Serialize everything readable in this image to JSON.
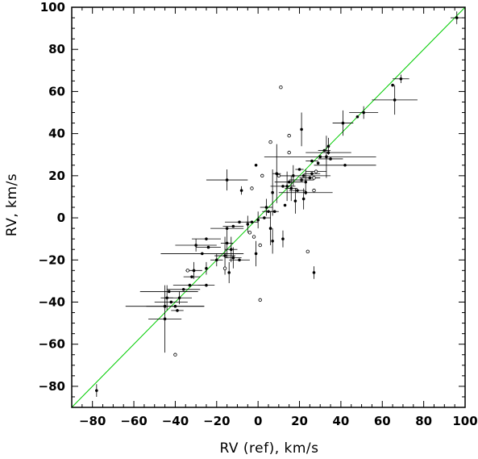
{
  "chart_data": {
    "type": "scatter",
    "title": "",
    "xlabel": "RV  (ref), km/s",
    "ylabel": "RV,  km/s",
    "xlim": [
      -90,
      100
    ],
    "ylim": [
      -90,
      100
    ],
    "x_ticks": [
      -80,
      -60,
      -40,
      -20,
      0,
      20,
      40,
      60,
      80,
      100
    ],
    "y_ticks": [
      -80,
      -60,
      -40,
      -20,
      0,
      20,
      40,
      60,
      80,
      100
    ],
    "x_tick_labels": [
      "−80",
      "−60",
      "−40",
      "−20",
      "0",
      "20",
      "40",
      "60",
      "80",
      "100"
    ],
    "y_tick_labels": [
      "−80",
      "−60",
      "−40",
      "−20",
      "0",
      "20",
      "40",
      "60",
      "80",
      "100"
    ],
    "grid": false,
    "reference_line": {
      "name": "",
      "slope": 1,
      "intercept": 0,
      "color": "#00cc00"
    },
    "series": [
      {
        "name": "",
        "marker": "filled",
        "color": "#000000",
        "points": [
          {
            "x": 96,
            "y": 95,
            "xerr": 3,
            "yerr": 3
          },
          {
            "x": 69,
            "y": 66,
            "xerr": 4,
            "yerr": 2
          },
          {
            "x": 65,
            "y": 63,
            "xerr": 0,
            "yerr": 0
          },
          {
            "x": 66,
            "y": 56,
            "xerr": 11,
            "yerr": 7
          },
          {
            "x": 51,
            "y": 50,
            "xerr": 7,
            "yerr": 3
          },
          {
            "x": 48,
            "y": 48,
            "xerr": 0,
            "yerr": 0
          },
          {
            "x": 41,
            "y": 45,
            "xerr": 5,
            "yerr": 6
          },
          {
            "x": 21,
            "y": 42,
            "xerr": 0,
            "yerr": 8
          },
          {
            "x": 34,
            "y": 34,
            "xerr": 0,
            "yerr": 4
          },
          {
            "x": 32,
            "y": 32,
            "xerr": 3,
            "yerr": 0
          },
          {
            "x": 30,
            "y": 29,
            "xerr": 27,
            "yerr": 0
          },
          {
            "x": 26,
            "y": 27,
            "xerr": 3,
            "yerr": 0
          },
          {
            "x": 34,
            "y": 31,
            "xerr": 11,
            "yerr": 0
          },
          {
            "x": 20,
            "y": 23,
            "xerr": 2,
            "yerr": 0
          },
          {
            "x": 17,
            "y": 20,
            "xerr": 7,
            "yerr": 5
          },
          {
            "x": 22,
            "y": 20,
            "xerr": 13,
            "yerr": 0
          },
          {
            "x": 33,
            "y": 29,
            "xerr": 0,
            "yerr": 10
          },
          {
            "x": 35,
            "y": 28,
            "xerr": 6,
            "yerr": 0
          },
          {
            "x": 25,
            "y": 19,
            "xerr": 5,
            "yerr": 0
          },
          {
            "x": 21,
            "y": 18,
            "xerr": 6,
            "yerr": 0
          },
          {
            "x": 15,
            "y": 17,
            "xerr": 7,
            "yerr": 0
          },
          {
            "x": 12,
            "y": 15,
            "xerr": 6,
            "yerr": 0
          },
          {
            "x": 16,
            "y": 14,
            "xerr": 3,
            "yerr": 6
          },
          {
            "x": 14,
            "y": 15,
            "xerr": 0,
            "yerr": 7
          },
          {
            "x": 19,
            "y": 13,
            "xerr": 4,
            "yerr": 0
          },
          {
            "x": 23,
            "y": 12,
            "xerr": 13,
            "yerr": 0
          },
          {
            "x": 28,
            "y": 22,
            "xerr": 5,
            "yerr": 0
          },
          {
            "x": 23,
            "y": 17,
            "xerr": 0,
            "yerr": 6
          },
          {
            "x": 42,
            "y": 25,
            "xerr": 15,
            "yerr": 0
          },
          {
            "x": 22,
            "y": 9,
            "xerr": 0,
            "yerr": 5
          },
          {
            "x": 18,
            "y": 8,
            "xerr": 0,
            "yerr": 6
          },
          {
            "x": 9,
            "y": 21,
            "xerr": 2,
            "yerr": 14
          },
          {
            "x": 7,
            "y": 12,
            "xerr": 0,
            "yerr": 11
          },
          {
            "x": -15,
            "y": 18,
            "xerr": 10,
            "yerr": 5
          },
          {
            "x": -8,
            "y": 13,
            "xerr": 0,
            "yerr": 2
          },
          {
            "x": -1,
            "y": 25,
            "xerr": 0,
            "yerr": 0
          },
          {
            "x": 4,
            "y": 5,
            "xerr": 3,
            "yerr": 4
          },
          {
            "x": 5,
            "y": 3,
            "xerr": 3,
            "yerr": 0
          },
          {
            "x": 8,
            "y": 3,
            "xerr": 2,
            "yerr": 0
          },
          {
            "x": 3,
            "y": 0,
            "xerr": 3,
            "yerr": 0
          },
          {
            "x": 0,
            "y": -1,
            "xerr": 0,
            "yerr": 4
          },
          {
            "x": -3,
            "y": -2,
            "xerr": 3,
            "yerr": 0
          },
          {
            "x": -5,
            "y": -3,
            "xerr": 0,
            "yerr": 4
          },
          {
            "x": -9,
            "y": -2,
            "xerr": 7,
            "yerr": 0
          },
          {
            "x": -12,
            "y": -4,
            "xerr": 5,
            "yerr": 0
          },
          {
            "x": -15,
            "y": -5,
            "xerr": 8,
            "yerr": 0
          },
          {
            "x": 6,
            "y": -5,
            "xerr": 0,
            "yerr": 8
          },
          {
            "x": 12,
            "y": -10,
            "xerr": 0,
            "yerr": 4
          },
          {
            "x": 7,
            "y": -11,
            "xerr": 0,
            "yerr": 6
          },
          {
            "x": -1,
            "y": -17,
            "xerr": 0,
            "yerr": 6
          },
          {
            "x": -25,
            "y": -10,
            "xerr": 7,
            "yerr": 0
          },
          {
            "x": -30,
            "y": -13,
            "xerr": 10,
            "yerr": 3
          },
          {
            "x": -24,
            "y": -14,
            "xerr": 6,
            "yerr": 0
          },
          {
            "x": -27,
            "y": -17,
            "xerr": 20,
            "yerr": 0
          },
          {
            "x": -15,
            "y": -12,
            "xerr": 3,
            "yerr": 7
          },
          {
            "x": -13,
            "y": -15,
            "xerr": 3,
            "yerr": 6
          },
          {
            "x": -16,
            "y": -18,
            "xerr": 5,
            "yerr": 9
          },
          {
            "x": -12,
            "y": -19,
            "xerr": 4,
            "yerr": 5
          },
          {
            "x": -9,
            "y": -20,
            "xerr": 5,
            "yerr": 0
          },
          {
            "x": -14,
            "y": -26,
            "xerr": 0,
            "yerr": 5
          },
          {
            "x": -20,
            "y": -20,
            "xerr": 3,
            "yerr": 3
          },
          {
            "x": -25,
            "y": -24,
            "xerr": 0,
            "yerr": 3
          },
          {
            "x": -31,
            "y": -25,
            "xerr": 4,
            "yerr": 4
          },
          {
            "x": -32,
            "y": -28,
            "xerr": 4,
            "yerr": 0
          },
          {
            "x": -25,
            "y": -32,
            "xerr": 4,
            "yerr": 0
          },
          {
            "x": -33,
            "y": -32,
            "xerr": 8,
            "yerr": 0
          },
          {
            "x": -36,
            "y": -34,
            "xerr": 8,
            "yerr": 0
          },
          {
            "x": -43,
            "y": -35,
            "xerr": 14,
            "yerr": 0
          },
          {
            "x": -38,
            "y": -38,
            "xerr": 6,
            "yerr": 3
          },
          {
            "x": -44,
            "y": -38,
            "xerr": 3,
            "yerr": 6
          },
          {
            "x": -42,
            "y": -40,
            "xerr": 8,
            "yerr": 0
          },
          {
            "x": -40,
            "y": -42,
            "xerr": 14,
            "yerr": 0
          },
          {
            "x": -45,
            "y": -42,
            "xerr": 19,
            "yerr": 0
          },
          {
            "x": -39,
            "y": -44,
            "xerr": 3,
            "yerr": 0
          },
          {
            "x": -45,
            "y": -48,
            "xerr": 8,
            "yerr": 16
          },
          {
            "x": -78,
            "y": -82,
            "xerr": 0,
            "yerr": 3
          },
          {
            "x": 13,
            "y": 6,
            "xerr": 0,
            "yerr": 0
          },
          {
            "x": 26,
            "y": 21,
            "xerr": 4,
            "yerr": 0
          },
          {
            "x": 29,
            "y": 26,
            "xerr": 0,
            "yerr": 0
          },
          {
            "x": 27,
            "y": -26,
            "xerr": 0,
            "yerr": 3
          }
        ]
      },
      {
        "name": "",
        "marker": "open",
        "color": "#000000",
        "points": [
          {
            "x": 11,
            "y": 62
          },
          {
            "x": 6,
            "y": 36
          },
          {
            "x": 15,
            "y": 39
          },
          {
            "x": 2,
            "y": 20
          },
          {
            "x": 15,
            "y": 31
          },
          {
            "x": 27,
            "y": 19
          },
          {
            "x": 28,
            "y": 22
          },
          {
            "x": -3,
            "y": 14
          },
          {
            "x": -4,
            "y": -7
          },
          {
            "x": 1,
            "y": -13
          },
          {
            "x": 24,
            "y": -16
          },
          {
            "x": -2,
            "y": -9
          },
          {
            "x": -34,
            "y": -25
          },
          {
            "x": -16,
            "y": -24
          },
          {
            "x": 1,
            "y": -39
          },
          {
            "x": -40,
            "y": -65
          },
          {
            "x": 27,
            "y": 13
          },
          {
            "x": 10,
            "y": 20
          }
        ]
      }
    ]
  }
}
